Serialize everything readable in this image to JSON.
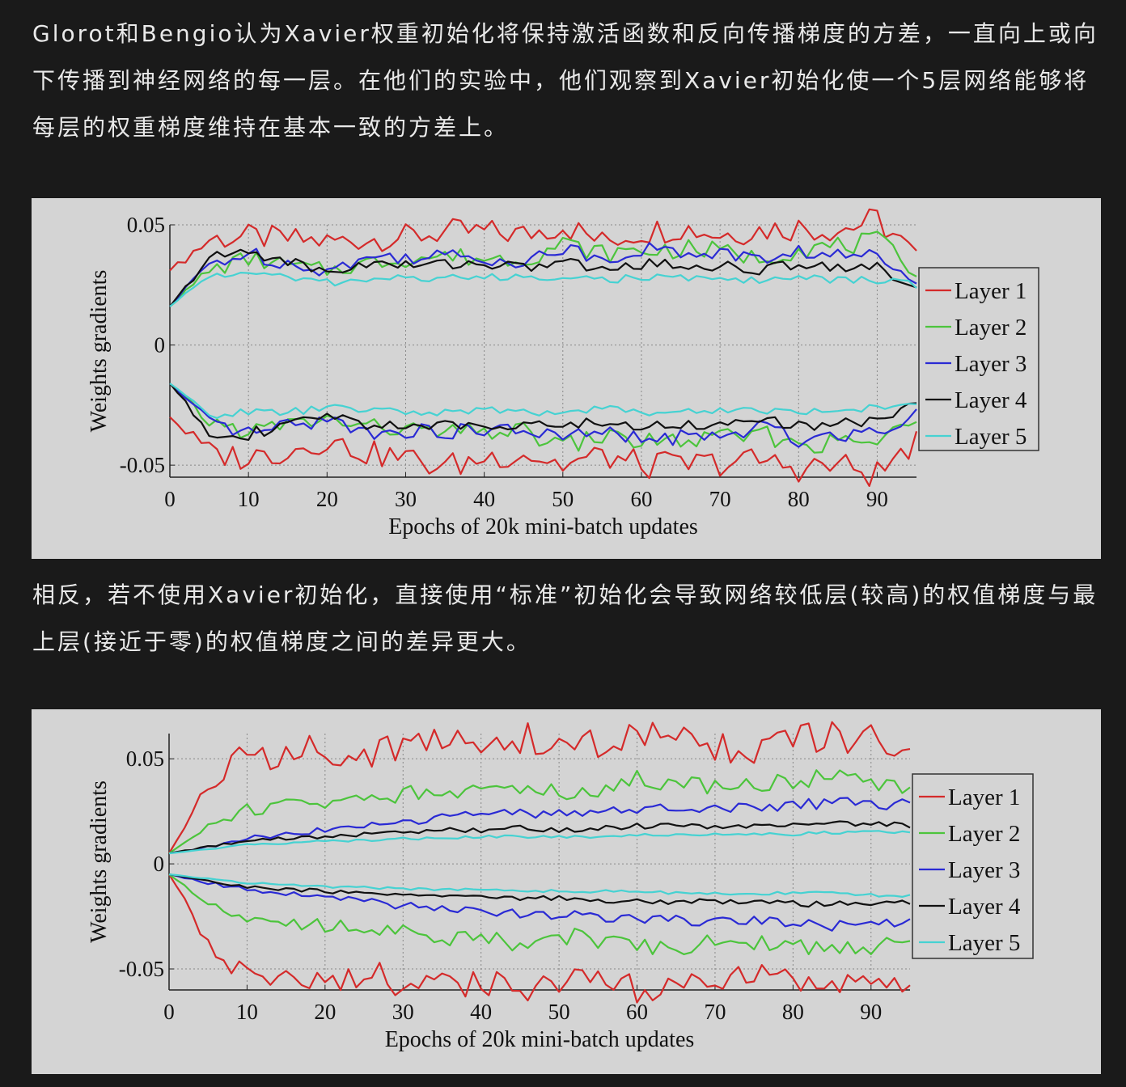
{
  "paragraphs": {
    "p1": "Glorot和Bengio认为Xavier权重初始化将保持激活函数和反向传播梯度的方差，一直向上或向下传播到神经网络的每一层。在他们的实验中，他们观察到Xavier初始化使一个5层网络能够将每层的权重梯度维持在基本一致的方差上。",
    "p2": "相反，若不使用Xavier初始化，直接使用“标准”初始化会导致网络较低层(较高)的权值梯度与最上层(接近于零)的权值梯度之间的差异更大。"
  },
  "chart_data": [
    {
      "type": "line",
      "xlabel": "Epochs of 20k mini-batch updates",
      "ylabel": "Weights gradients",
      "xlim": [
        0,
        95
      ],
      "ylim": [
        -0.055,
        0.05
      ],
      "xticks": [
        0,
        10,
        20,
        30,
        40,
        50,
        60,
        70,
        80,
        90
      ],
      "xtick_labels": [
        "0",
        "10",
        "20",
        "30",
        "40",
        "50",
        "60",
        "70",
        "80",
        "90"
      ],
      "yticks": [
        -0.05,
        0,
        0.05
      ],
      "ytick_labels": [
        "-0.05",
        "0",
        "0.05"
      ],
      "grid": true,
      "legend_position": "right",
      "x": [
        0,
        5,
        10,
        15,
        20,
        25,
        30,
        35,
        40,
        45,
        50,
        55,
        60,
        65,
        70,
        75,
        80,
        85,
        90,
        95
      ],
      "series": [
        {
          "name": "Layer 1",
          "color": "#d42a2a",
          "upper": [
            0.031,
            0.044,
            0.045,
            0.044,
            0.043,
            0.044,
            0.045,
            0.047,
            0.047,
            0.046,
            0.05,
            0.043,
            0.047,
            0.049,
            0.046,
            0.048,
            0.049,
            0.048,
            0.052,
            0.037
          ],
          "lower": [
            -0.03,
            -0.045,
            -0.047,
            -0.044,
            -0.04,
            -0.045,
            -0.047,
            -0.051,
            -0.047,
            -0.045,
            -0.05,
            -0.046,
            -0.05,
            -0.05,
            -0.049,
            -0.048,
            -0.051,
            -0.05,
            -0.054,
            -0.04
          ]
        },
        {
          "name": "Layer 2",
          "color": "#4cc43c",
          "upper": [
            0.016,
            0.031,
            0.036,
            0.033,
            0.031,
            0.034,
            0.036,
            0.037,
            0.036,
            0.036,
            0.042,
            0.038,
            0.039,
            0.04,
            0.039,
            0.036,
            0.04,
            0.041,
            0.043,
            0.031
          ],
          "lower": [
            -0.016,
            -0.032,
            -0.036,
            -0.033,
            -0.031,
            -0.034,
            -0.035,
            -0.037,
            -0.036,
            -0.036,
            -0.042,
            -0.038,
            -0.04,
            -0.04,
            -0.039,
            -0.037,
            -0.041,
            -0.041,
            -0.04,
            -0.032
          ]
        },
        {
          "name": "Layer 3",
          "color": "#2a2ad4",
          "upper": [
            0.016,
            0.034,
            0.038,
            0.034,
            0.031,
            0.036,
            0.037,
            0.037,
            0.036,
            0.035,
            0.04,
            0.036,
            0.04,
            0.038,
            0.039,
            0.035,
            0.039,
            0.037,
            0.037,
            0.028
          ],
          "lower": [
            -0.016,
            -0.033,
            -0.037,
            -0.034,
            -0.031,
            -0.036,
            -0.036,
            -0.036,
            -0.036,
            -0.035,
            -0.039,
            -0.036,
            -0.04,
            -0.038,
            -0.039,
            -0.034,
            -0.039,
            -0.037,
            -0.036,
            -0.028
          ]
        },
        {
          "name": "Layer 4",
          "color": "#111111",
          "upper": [
            0.016,
            0.036,
            0.039,
            0.035,
            0.03,
            0.034,
            0.033,
            0.034,
            0.034,
            0.032,
            0.035,
            0.031,
            0.034,
            0.033,
            0.033,
            0.031,
            0.034,
            0.033,
            0.032,
            0.024
          ],
          "lower": [
            -0.016,
            -0.036,
            -0.037,
            -0.034,
            -0.029,
            -0.033,
            -0.033,
            -0.034,
            -0.034,
            -0.032,
            -0.034,
            -0.032,
            -0.034,
            -0.033,
            -0.033,
            -0.031,
            -0.034,
            -0.033,
            -0.031,
            -0.025
          ]
        },
        {
          "name": "Layer 5",
          "color": "#46d2d2",
          "upper": [
            0.016,
            0.029,
            0.03,
            0.028,
            0.026,
            0.027,
            0.028,
            0.028,
            0.028,
            0.028,
            0.029,
            0.027,
            0.028,
            0.028,
            0.027,
            0.027,
            0.028,
            0.027,
            0.027,
            0.025
          ],
          "lower": [
            -0.016,
            -0.029,
            -0.028,
            -0.028,
            -0.026,
            -0.027,
            -0.028,
            -0.028,
            -0.027,
            -0.028,
            -0.028,
            -0.026,
            -0.028,
            -0.028,
            -0.027,
            -0.027,
            -0.028,
            -0.027,
            -0.026,
            -0.024
          ]
        }
      ]
    },
    {
      "type": "line",
      "xlabel": "Epochs of 20k mini-batch updates",
      "ylabel": "Weights gradients",
      "xlim": [
        0,
        95
      ],
      "ylim": [
        -0.06,
        0.062
      ],
      "xticks": [
        0,
        10,
        20,
        30,
        40,
        50,
        60,
        70,
        80,
        90
      ],
      "xtick_labels": [
        "0",
        "10",
        "20",
        "30",
        "40",
        "50",
        "60",
        "70",
        "80",
        "90"
      ],
      "yticks": [
        -0.05,
        0,
        0.05
      ],
      "ytick_labels": [
        "-0.05",
        "0",
        "0.05"
      ],
      "grid": true,
      "legend_position": "right",
      "x": [
        0,
        5,
        10,
        15,
        20,
        25,
        30,
        35,
        40,
        45,
        50,
        55,
        60,
        65,
        70,
        75,
        80,
        85,
        90,
        95
      ],
      "series": [
        {
          "name": "Layer 1",
          "color": "#d42a2a",
          "upper": [
            0.005,
            0.037,
            0.052,
            0.052,
            0.055,
            0.052,
            0.056,
            0.058,
            0.057,
            0.06,
            0.055,
            0.057,
            0.06,
            0.061,
            0.056,
            0.055,
            0.058,
            0.06,
            0.058,
            0.052
          ],
          "lower": [
            -0.005,
            -0.036,
            -0.053,
            -0.052,
            -0.054,
            -0.053,
            -0.056,
            -0.057,
            -0.057,
            -0.06,
            -0.056,
            -0.056,
            -0.062,
            -0.061,
            -0.055,
            -0.055,
            -0.058,
            -0.06,
            -0.057,
            -0.053
          ]
        },
        {
          "name": "Layer 2",
          "color": "#4cc43c",
          "upper": [
            0.005,
            0.018,
            0.026,
            0.028,
            0.03,
            0.031,
            0.033,
            0.036,
            0.035,
            0.038,
            0.034,
            0.036,
            0.04,
            0.039,
            0.037,
            0.038,
            0.04,
            0.041,
            0.039,
            0.034
          ],
          "lower": [
            -0.005,
            -0.018,
            -0.026,
            -0.028,
            -0.029,
            -0.03,
            -0.033,
            -0.035,
            -0.035,
            -0.038,
            -0.034,
            -0.036,
            -0.041,
            -0.039,
            -0.037,
            -0.037,
            -0.04,
            -0.041,
            -0.039,
            -0.034
          ]
        },
        {
          "name": "Layer 3",
          "color": "#2a2ad4",
          "upper": [
            0.005,
            0.008,
            0.012,
            0.014,
            0.016,
            0.018,
            0.02,
            0.022,
            0.023,
            0.024,
            0.024,
            0.025,
            0.026,
            0.027,
            0.027,
            0.027,
            0.028,
            0.029,
            0.029,
            0.028
          ],
          "lower": [
            -0.005,
            -0.009,
            -0.012,
            -0.014,
            -0.016,
            -0.018,
            -0.02,
            -0.022,
            -0.023,
            -0.024,
            -0.024,
            -0.025,
            -0.026,
            -0.027,
            -0.027,
            -0.027,
            -0.028,
            -0.029,
            -0.029,
            -0.028
          ]
        },
        {
          "name": "Layer 4",
          "color": "#111111",
          "upper": [
            0.005,
            0.008,
            0.011,
            0.012,
            0.013,
            0.014,
            0.015,
            0.016,
            0.016,
            0.017,
            0.016,
            0.017,
            0.018,
            0.018,
            0.018,
            0.018,
            0.019,
            0.019,
            0.019,
            0.018
          ],
          "lower": [
            -0.005,
            -0.008,
            -0.011,
            -0.012,
            -0.013,
            -0.014,
            -0.015,
            -0.016,
            -0.016,
            -0.017,
            -0.016,
            -0.017,
            -0.018,
            -0.018,
            -0.018,
            -0.018,
            -0.019,
            -0.019,
            -0.019,
            -0.018
          ]
        },
        {
          "name": "Layer 5",
          "color": "#46d2d2",
          "upper": [
            0.005,
            0.007,
            0.009,
            0.01,
            0.011,
            0.011,
            0.012,
            0.012,
            0.013,
            0.013,
            0.013,
            0.013,
            0.014,
            0.014,
            0.014,
            0.014,
            0.014,
            0.015,
            0.015,
            0.015
          ],
          "lower": [
            -0.005,
            -0.007,
            -0.009,
            -0.01,
            -0.011,
            -0.011,
            -0.012,
            -0.012,
            -0.012,
            -0.013,
            -0.013,
            -0.013,
            -0.013,
            -0.014,
            -0.014,
            -0.014,
            -0.014,
            -0.014,
            -0.015,
            -0.015
          ]
        }
      ]
    }
  ]
}
